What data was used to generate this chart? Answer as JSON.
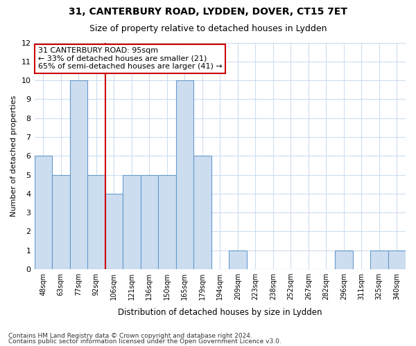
{
  "title1": "31, CANTERBURY ROAD, LYDDEN, DOVER, CT15 7ET",
  "title2": "Size of property relative to detached houses in Lydden",
  "xlabel": "Distribution of detached houses by size in Lydden",
  "ylabel": "Number of detached properties",
  "categories": [
    "48sqm",
    "63sqm",
    "77sqm",
    "92sqm",
    "106sqm",
    "121sqm",
    "136sqm",
    "150sqm",
    "165sqm",
    "179sqm",
    "194sqm",
    "209sqm",
    "223sqm",
    "238sqm",
    "252sqm",
    "267sqm",
    "282sqm",
    "296sqm",
    "311sqm",
    "325sqm",
    "340sqm"
  ],
  "values": [
    6,
    5,
    10,
    5,
    4,
    5,
    5,
    5,
    10,
    6,
    0,
    1,
    0,
    0,
    0,
    0,
    0,
    1,
    0,
    1,
    1
  ],
  "bar_color": "#ccddf0",
  "bar_edge_color": "#6699cc",
  "vline_color": "#cc0000",
  "annotation_text": "31 CANTERBURY ROAD: 95sqm\n← 33% of detached houses are smaller (21)\n65% of semi-detached houses are larger (41) →",
  "annotation_box_color": "#ffffff",
  "annotation_box_edge": "#cc0000",
  "ylim": [
    0,
    12
  ],
  "yticks": [
    0,
    1,
    2,
    3,
    4,
    5,
    6,
    7,
    8,
    9,
    10,
    11,
    12
  ],
  "footer1": "Contains HM Land Registry data © Crown copyright and database right 2024.",
  "footer2": "Contains public sector information licensed under the Open Government Licence v3.0.",
  "bg_color": "#ffffff",
  "plot_bg_color": "#ffffff",
  "grid_color": "#ccddee"
}
